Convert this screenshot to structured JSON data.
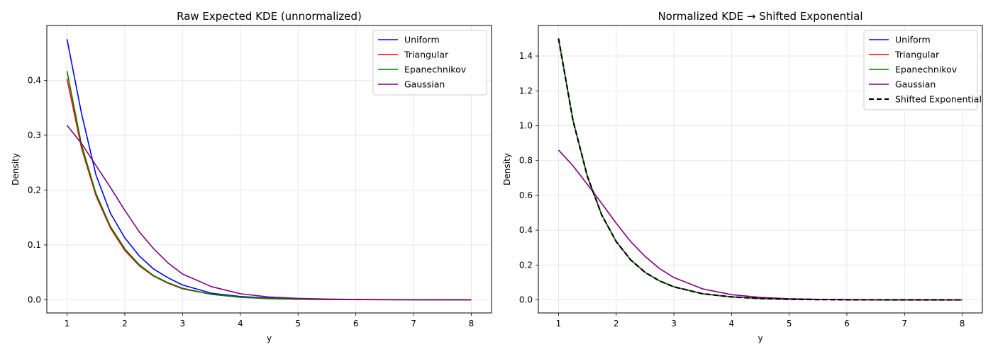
{
  "chart_data": [
    {
      "type": "line",
      "title": "Raw Expected KDE (unnormalized)",
      "xlabel": "y",
      "ylabel": "Density",
      "xlim": [
        0.65,
        8.35
      ],
      "ylim": [
        -0.024,
        0.5
      ],
      "xticks": [
        1,
        2,
        3,
        4,
        5,
        6,
        7,
        8
      ],
      "yticks": [
        0.0,
        0.1,
        0.2,
        0.3,
        0.4
      ],
      "ytick_labels": [
        "0.0",
        "0.1",
        "0.2",
        "0.3",
        "0.4"
      ],
      "grid": true,
      "legend": "top-right",
      "series": [
        {
          "name": "Uniform",
          "color": "#0000ff",
          "x": [
            1.0,
            1.25,
            1.5,
            1.75,
            2.0,
            2.25,
            2.5,
            2.75,
            3.0,
            3.5,
            4.0,
            4.5,
            5.0,
            5.5,
            6.0,
            6.5,
            7.0,
            7.5,
            8.0
          ],
          "y": [
            0.475,
            0.34,
            0.228,
            0.158,
            0.113,
            0.08,
            0.056,
            0.04,
            0.027,
            0.012,
            0.006,
            0.003,
            0.0015,
            0.0008,
            0.0004,
            0.0002,
            0.0001,
            0.0,
            0.0
          ]
        },
        {
          "name": "Triangular",
          "color": "#ff0000",
          "x": [
            1.0,
            1.25,
            1.5,
            1.75,
            2.0,
            2.25,
            2.5,
            2.75,
            3.0,
            3.5,
            4.0,
            4.5,
            5.0,
            5.5,
            6.0,
            6.5,
            7.0,
            7.5,
            8.0
          ],
          "y": [
            0.403,
            0.277,
            0.19,
            0.131,
            0.09,
            0.062,
            0.043,
            0.03,
            0.02,
            0.01,
            0.0045,
            0.002,
            0.001,
            0.0005,
            0.0002,
            0.0001,
            0.0,
            0.0,
            0.0
          ]
        },
        {
          "name": "Epanechnikov",
          "color": "#008000",
          "x": [
            1.0,
            1.25,
            1.5,
            1.75,
            2.0,
            2.25,
            2.5,
            2.75,
            3.0,
            3.5,
            4.0,
            4.5,
            5.0,
            5.5,
            6.0,
            6.5,
            7.0,
            7.5,
            8.0
          ],
          "y": [
            0.417,
            0.283,
            0.194,
            0.134,
            0.093,
            0.064,
            0.044,
            0.031,
            0.021,
            0.01,
            0.0048,
            0.0022,
            0.001,
            0.0005,
            0.0002,
            0.0001,
            0.0,
            0.0,
            0.0
          ]
        },
        {
          "name": "Gaussian",
          "color": "#800080",
          "x": [
            1.0,
            1.25,
            1.5,
            1.75,
            2.0,
            2.25,
            2.5,
            2.75,
            3.0,
            3.5,
            4.0,
            4.5,
            5.0,
            5.5,
            6.0,
            6.5,
            7.0,
            7.5,
            8.0
          ],
          "y": [
            0.318,
            0.285,
            0.245,
            0.205,
            0.163,
            0.124,
            0.093,
            0.067,
            0.047,
            0.024,
            0.011,
            0.005,
            0.0025,
            0.0012,
            0.0006,
            0.0003,
            0.0001,
            0.0,
            0.0
          ]
        }
      ]
    },
    {
      "type": "line",
      "title": "Normalized KDE → Shifted Exponential",
      "xlabel": "y",
      "ylabel": "Density",
      "xlim": [
        0.65,
        8.35
      ],
      "ylim": [
        -0.075,
        1.575
      ],
      "xticks": [
        1,
        2,
        3,
        4,
        5,
        6,
        7,
        8
      ],
      "yticks": [
        0.0,
        0.2,
        0.4,
        0.6,
        0.8,
        1.0,
        1.2,
        1.4
      ],
      "ytick_labels": [
        "0.0",
        "0.2",
        "0.4",
        "0.6",
        "0.8",
        "1.0",
        "1.2",
        "1.4"
      ],
      "grid": true,
      "legend": "top-right",
      "series": [
        {
          "name": "Uniform",
          "color": "#0000ff",
          "x": [
            1.0,
            1.25,
            1.5,
            1.75,
            2.0,
            2.25,
            2.5,
            2.75,
            3.0,
            3.5,
            4.0,
            4.5,
            5.0,
            5.5,
            6.0,
            6.5,
            7.0,
            7.5,
            8.0
          ],
          "y": [
            1.5,
            1.031,
            0.709,
            0.487,
            0.335,
            0.23,
            0.158,
            0.109,
            0.075,
            0.035,
            0.017,
            0.008,
            0.0037,
            0.0017,
            0.0008,
            0.0004,
            0.0002,
            0.0001,
            0.0
          ]
        },
        {
          "name": "Triangular",
          "color": "#ff0000",
          "x": [
            1.0,
            1.25,
            1.5,
            1.75,
            2.0,
            2.25,
            2.5,
            2.75,
            3.0,
            3.5,
            4.0,
            4.5,
            5.0,
            5.5,
            6.0,
            6.5,
            7.0,
            7.5,
            8.0
          ],
          "y": [
            1.5,
            1.031,
            0.709,
            0.487,
            0.335,
            0.23,
            0.158,
            0.109,
            0.075,
            0.035,
            0.017,
            0.008,
            0.0037,
            0.0017,
            0.0008,
            0.0004,
            0.0002,
            0.0001,
            0.0
          ]
        },
        {
          "name": "Epanechnikov",
          "color": "#008000",
          "x": [
            1.0,
            1.25,
            1.5,
            1.75,
            2.0,
            2.25,
            2.5,
            2.75,
            3.0,
            3.5,
            4.0,
            4.5,
            5.0,
            5.5,
            6.0,
            6.5,
            7.0,
            7.5,
            8.0
          ],
          "y": [
            1.5,
            1.031,
            0.709,
            0.487,
            0.335,
            0.23,
            0.158,
            0.109,
            0.075,
            0.035,
            0.017,
            0.008,
            0.0037,
            0.0017,
            0.0008,
            0.0004,
            0.0002,
            0.0001,
            0.0
          ]
        },
        {
          "name": "Gaussian",
          "color": "#800080",
          "x": [
            1.0,
            1.25,
            1.5,
            1.75,
            2.0,
            2.25,
            2.5,
            2.75,
            3.0,
            3.5,
            4.0,
            4.5,
            5.0,
            5.5,
            6.0,
            6.5,
            7.0,
            7.5,
            8.0
          ],
          "y": [
            0.86,
            0.77,
            0.663,
            0.553,
            0.44,
            0.335,
            0.25,
            0.18,
            0.128,
            0.063,
            0.03,
            0.014,
            0.0066,
            0.003,
            0.0014,
            0.0006,
            0.0003,
            0.0001,
            0.0
          ]
        },
        {
          "name": "Shifted Exponential",
          "color": "#000000",
          "dashed": true,
          "x": [
            1.0,
            1.25,
            1.5,
            1.75,
            2.0,
            2.25,
            2.5,
            2.75,
            3.0,
            3.5,
            4.0,
            4.5,
            5.0,
            5.5,
            6.0,
            6.5,
            7.0,
            7.5,
            8.0
          ],
          "y": [
            1.5,
            1.031,
            0.709,
            0.487,
            0.335,
            0.23,
            0.158,
            0.109,
            0.075,
            0.035,
            0.017,
            0.008,
            0.0037,
            0.0017,
            0.0008,
            0.0004,
            0.0002,
            0.0001,
            0.0
          ]
        }
      ]
    }
  ]
}
